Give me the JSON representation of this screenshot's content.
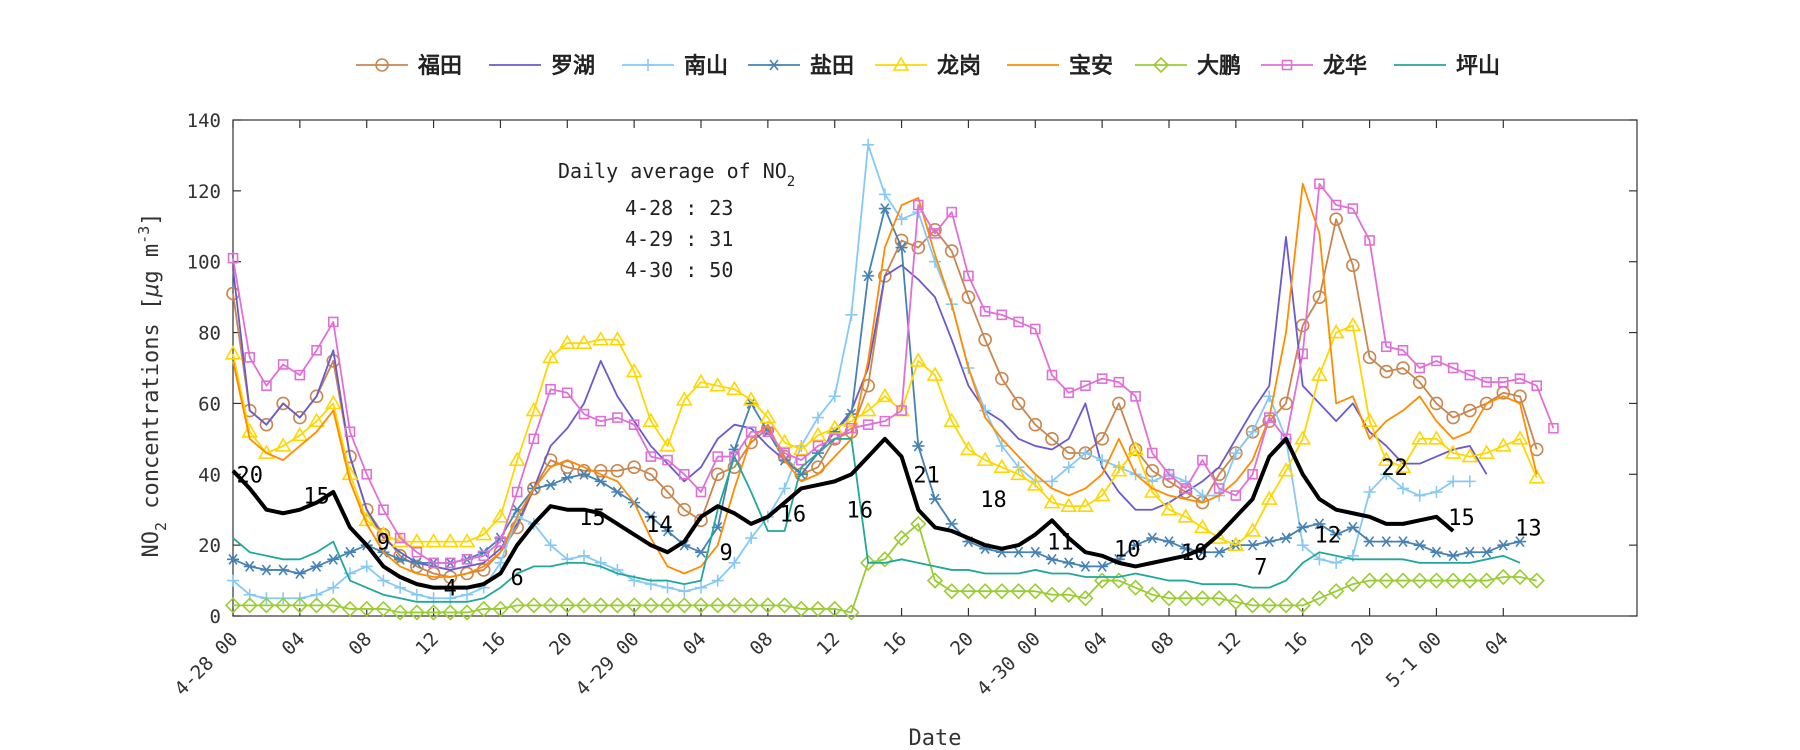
{
  "chart_data": {
    "type": "line",
    "title": "",
    "xlabel": "Date",
    "ylabel": "NO2 concentrations [μg m-3]",
    "ylabel_parts": {
      "main": "NO",
      "sub": "2",
      "mid": " concentrations [",
      "mu": "μ",
      "unit": "g m",
      "sup": "-3",
      "end": "]"
    },
    "ylim": [
      0,
      140
    ],
    "yticks": [
      0,
      20,
      40,
      60,
      80,
      100,
      120,
      140
    ],
    "xlim": [
      0,
      84
    ],
    "xticks": [
      {
        "t": 0,
        "label": "4-28 00"
      },
      {
        "t": 4,
        "label": "04"
      },
      {
        "t": 8,
        "label": "08"
      },
      {
        "t": 12,
        "label": "12"
      },
      {
        "t": 16,
        "label": "16"
      },
      {
        "t": 20,
        "label": "20"
      },
      {
        "t": 24,
        "label": "4-29 00"
      },
      {
        "t": 28,
        "label": "04"
      },
      {
        "t": 32,
        "label": "08"
      },
      {
        "t": 36,
        "label": "12"
      },
      {
        "t": 40,
        "label": "16"
      },
      {
        "t": 44,
        "label": "20"
      },
      {
        "t": 48,
        "label": "4-30 00"
      },
      {
        "t": 52,
        "label": "04"
      },
      {
        "t": 56,
        "label": "08"
      },
      {
        "t": 60,
        "label": "12"
      },
      {
        "t": 64,
        "label": "16"
      },
      {
        "t": 68,
        "label": "20"
      },
      {
        "t": 72,
        "label": "5-1 00"
      },
      {
        "t": 76,
        "label": "04"
      }
    ],
    "legend_position": "top",
    "grid": false,
    "annotation": {
      "title_main": "Daily average of NO",
      "title_sub": "2",
      "lines": [
        "4-28 : 23",
        "4-29 : 31",
        "4-30 : 50"
      ]
    },
    "average": {
      "name": "average",
      "color": "#000000",
      "values": [
        41,
        36,
        30,
        29,
        30,
        32,
        35,
        25,
        20,
        14,
        11,
        9,
        8,
        8,
        8,
        9,
        12,
        20,
        26,
        31,
        30,
        30,
        29,
        26,
        23,
        20,
        18,
        21,
        28,
        31,
        29,
        26,
        28,
        32,
        36,
        37,
        38,
        40,
        45,
        50,
        45,
        30,
        25,
        24,
        22,
        20,
        19,
        20,
        23,
        27,
        22,
        18,
        17,
        15,
        14,
        15,
        16,
        17,
        19,
        23,
        28,
        33,
        45,
        50,
        40,
        33,
        30,
        29,
        28,
        26,
        26,
        27,
        28,
        24
      ],
      "labels": [
        {
          "t": 1,
          "v": 40,
          "text": "20"
        },
        {
          "t": 5,
          "v": 34,
          "text": "15"
        },
        {
          "t": 9,
          "v": 21,
          "text": "9"
        },
        {
          "t": 13,
          "v": 8,
          "text": "4"
        },
        {
          "t": 17,
          "v": 11,
          "text": "6"
        },
        {
          "t": 21.5,
          "v": 28,
          "text": "15"
        },
        {
          "t": 25.5,
          "v": 26,
          "text": "14"
        },
        {
          "t": 29.5,
          "v": 18,
          "text": "9"
        },
        {
          "t": 33.5,
          "v": 29,
          "text": "16"
        },
        {
          "t": 37.5,
          "v": 30,
          "text": "16"
        },
        {
          "t": 41.5,
          "v": 40,
          "text": "21"
        },
        {
          "t": 45.5,
          "v": 33,
          "text": "18"
        },
        {
          "t": 49.5,
          "v": 21,
          "text": "11"
        },
        {
          "t": 53.5,
          "v": 19,
          "text": "10"
        },
        {
          "t": 57.5,
          "v": 18,
          "text": "10"
        },
        {
          "t": 61.5,
          "v": 14,
          "text": "7"
        },
        {
          "t": 65.5,
          "v": 23,
          "text": "12"
        },
        {
          "t": 69.5,
          "v": 42,
          "text": "22"
        },
        {
          "t": 73.5,
          "v": 28,
          "text": "15"
        },
        {
          "t": 77.5,
          "v": 25,
          "text": "13"
        }
      ]
    },
    "series": [
      {
        "name": "福田",
        "color": "#c9864e",
        "marker": "circle",
        "values": [
          91,
          58,
          54,
          60,
          56,
          62,
          72,
          45,
          30,
          23,
          17,
          14,
          12,
          11,
          12,
          13,
          18,
          25,
          36,
          44,
          42,
          41,
          41,
          41,
          42,
          40,
          35,
          30,
          27,
          40,
          42,
          49,
          53,
          45,
          40,
          42,
          50,
          52,
          65,
          96,
          106,
          104,
          109,
          103,
          90,
          78,
          67,
          60,
          54,
          50,
          46,
          46,
          50,
          60,
          47,
          41,
          38,
          35,
          32,
          40,
          46,
          52,
          55,
          60,
          82,
          90,
          112,
          99,
          73,
          69,
          70,
          66,
          60,
          56,
          58,
          60,
          63,
          62,
          47
        ]
      },
      {
        "name": "罗湖",
        "color": "#6a5acd",
        "marker": "none",
        "values": [
          98,
          58,
          54,
          60,
          56,
          62,
          75,
          45,
          30,
          22,
          18,
          15,
          14,
          13,
          14,
          15,
          19,
          26,
          36,
          48,
          53,
          60,
          72,
          62,
          55,
          48,
          43,
          38,
          42,
          50,
          54,
          53,
          48,
          44,
          40,
          46,
          52,
          58,
          70,
          96,
          99,
          95,
          90,
          78,
          65,
          58,
          55,
          50,
          48,
          47,
          50,
          60,
          42,
          35,
          30,
          30,
          32,
          35,
          38,
          42,
          50,
          58,
          65,
          107,
          65,
          60,
          55,
          60,
          52,
          48,
          43,
          43,
          45,
          47,
          48,
          40
        ]
      },
      {
        "name": "南山",
        "color": "#87c9f5",
        "marker": "plus",
        "values": [
          10,
          6,
          5,
          5,
          5,
          6,
          8,
          12,
          14,
          10,
          8,
          6,
          5,
          5,
          6,
          8,
          15,
          28,
          26,
          20,
          16,
          17,
          15,
          13,
          10,
          9,
          8,
          7,
          8,
          10,
          15,
          22,
          28,
          36,
          48,
          56,
          62,
          85,
          133,
          119,
          112,
          114,
          100,
          88,
          70,
          58,
          48,
          42,
          38,
          38,
          42,
          46,
          44,
          42,
          40,
          38,
          40,
          38,
          34,
          34,
          46,
          52,
          62,
          50,
          20,
          16,
          15,
          17,
          35,
          40,
          36,
          34,
          35,
          38,
          38
        ]
      },
      {
        "name": "盐田",
        "color": "#4682b4",
        "marker": "asterisk",
        "values": [
          16,
          14,
          13,
          13,
          12,
          14,
          16,
          18,
          20,
          18,
          16,
          15,
          15,
          15,
          16,
          18,
          22,
          30,
          36,
          37,
          39,
          40,
          38,
          35,
          32,
          28,
          24,
          20,
          18,
          25,
          47,
          60,
          52,
          44,
          40,
          46,
          52,
          57,
          96,
          115,
          104,
          48,
          33,
          26,
          21,
          19,
          18,
          18,
          18,
          16,
          15,
          14,
          14,
          16,
          20,
          22,
          21,
          19,
          18,
          18,
          20,
          20,
          21,
          22,
          25,
          26,
          23,
          25,
          21,
          21,
          21,
          20,
          18,
          17,
          18,
          18,
          20,
          21
        ]
      },
      {
        "name": "龙岗",
        "color": "#ffd700",
        "marker": "triangle",
        "values": [
          74,
          52,
          46,
          48,
          51,
          55,
          60,
          40,
          27,
          23,
          21,
          21,
          21,
          21,
          21,
          23,
          28,
          44,
          58,
          73,
          77,
          77,
          78,
          78,
          69,
          55,
          48,
          61,
          66,
          65,
          64,
          61,
          56,
          49,
          47,
          51,
          53,
          55,
          58,
          62,
          58,
          72,
          68,
          55,
          47,
          44,
          42,
          40,
          37,
          32,
          31,
          31,
          34,
          41,
          47,
          35,
          30,
          28,
          25,
          22,
          20,
          24,
          33,
          41,
          50,
          68,
          80,
          82,
          55,
          44,
          42,
          50,
          50,
          46,
          45,
          46,
          48,
          50,
          39
        ]
      },
      {
        "name": "宝安",
        "color": "#ff8c00",
        "marker": "none",
        "values": [
          72,
          50,
          46,
          44,
          48,
          52,
          58,
          38,
          26,
          18,
          14,
          12,
          11,
          11,
          12,
          14,
          18,
          28,
          36,
          42,
          44,
          42,
          40,
          38,
          32,
          22,
          14,
          12,
          14,
          20,
          36,
          50,
          54,
          44,
          38,
          40,
          45,
          50,
          72,
          104,
          116,
          118,
          102,
          88,
          70,
          56,
          50,
          45,
          40,
          36,
          34,
          36,
          40,
          50,
          40,
          36,
          34,
          33,
          32,
          34,
          38,
          44,
          56,
          80,
          122,
          108,
          60,
          62,
          50,
          55,
          58,
          62,
          55,
          50,
          52,
          60,
          62,
          60,
          40
        ]
      },
      {
        "name": "大鹏",
        "color": "#9acd32",
        "marker": "diamond",
        "values": [
          3,
          3,
          3,
          3,
          3,
          3,
          3,
          2,
          2,
          2,
          1,
          1,
          1,
          1,
          1,
          2,
          2,
          3,
          3,
          3,
          3,
          3,
          3,
          3,
          3,
          3,
          3,
          3,
          3,
          3,
          3,
          3,
          3,
          3,
          2,
          2,
          2,
          1,
          15,
          16,
          22,
          26,
          10,
          7,
          7,
          7,
          7,
          7,
          7,
          6,
          6,
          5,
          10,
          10,
          8,
          6,
          5,
          5,
          5,
          5,
          4,
          3,
          3,
          3,
          3,
          5,
          7,
          9,
          10,
          10,
          10,
          10,
          10,
          10,
          10,
          10,
          11,
          11,
          10
        ]
      },
      {
        "name": "龙华",
        "color": "#e070d6",
        "marker": "square",
        "values": [
          101,
          73,
          65,
          71,
          68,
          75,
          83,
          52,
          40,
          30,
          22,
          18,
          15,
          15,
          16,
          17,
          21,
          35,
          50,
          64,
          63,
          57,
          55,
          56,
          54,
          45,
          44,
          40,
          35,
          45,
          45,
          52,
          52,
          46,
          44,
          48,
          50,
          53,
          54,
          55,
          58,
          116,
          108,
          114,
          96,
          86,
          85,
          83,
          81,
          68,
          63,
          65,
          67,
          66,
          62,
          46,
          40,
          36,
          44,
          36,
          34,
          40,
          56,
          50,
          74,
          122,
          116,
          115,
          106,
          76,
          75,
          70,
          72,
          70,
          68,
          66,
          66,
          67,
          65,
          53
        ]
      },
      {
        "name": "坪山",
        "color": "#20a89a",
        "marker": "none",
        "values": [
          22,
          18,
          17,
          16,
          16,
          18,
          21,
          10,
          8,
          6,
          5,
          4,
          4,
          4,
          4,
          5,
          8,
          12,
          14,
          14,
          15,
          15,
          14,
          12,
          11,
          10,
          10,
          9,
          10,
          30,
          45,
          35,
          24,
          24,
          42,
          46,
          50,
          50,
          15,
          15,
          16,
          15,
          14,
          13,
          13,
          12,
          12,
          12,
          13,
          12,
          12,
          11,
          11,
          11,
          12,
          11,
          10,
          10,
          9,
          9,
          9,
          8,
          8,
          10,
          15,
          18,
          17,
          16,
          16,
          16,
          16,
          15,
          15,
          15,
          15,
          16,
          17,
          15
        ]
      }
    ]
  }
}
